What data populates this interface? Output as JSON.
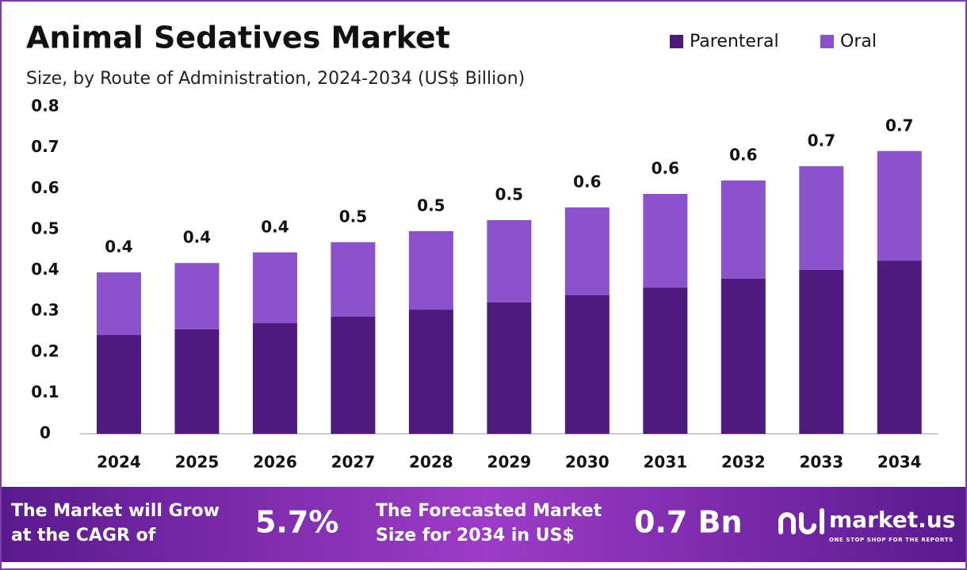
{
  "chart_data": {
    "type": "stacked_bar",
    "title": "Animal Sedatives Market",
    "subtitle": "Size, by Route of Administration, 2024-2034 (US$ Billion)",
    "categories": [
      "2024",
      "2025",
      "2026",
      "2027",
      "2028",
      "2029",
      "2030",
      "2031",
      "2032",
      "2033",
      "2034"
    ],
    "series": [
      {
        "name": "Parenteral",
        "color": "#4e1a7e",
        "values": [
          0.242,
          0.256,
          0.271,
          0.287,
          0.304,
          0.322,
          0.339,
          0.358,
          0.38,
          0.401,
          0.424
        ]
      },
      {
        "name": "Oral",
        "color": "#8b52cc",
        "values": [
          0.153,
          0.162,
          0.173,
          0.182,
          0.192,
          0.201,
          0.215,
          0.229,
          0.24,
          0.254,
          0.268
        ]
      }
    ],
    "total_labels": [
      "0.4",
      "0.4",
      "0.4",
      "0.5",
      "0.5",
      "0.5",
      "0.6",
      "0.6",
      "0.6",
      "0.7",
      "0.7"
    ],
    "ylim": [
      0,
      0.8
    ],
    "yticks": [
      0,
      0.1,
      0.2,
      0.3,
      0.4,
      0.5,
      0.6,
      0.7,
      0.8
    ],
    "grid": false,
    "legend": "top-right"
  },
  "footer": {
    "cagr_text": [
      "The Market will Grow",
      "at the CAGR of"
    ],
    "cagr_value": "5.7%",
    "forecast_text": [
      "The Forecasted Market",
      "Size for 2034 in US$"
    ],
    "forecast_value": "0.7 Bn",
    "brand": "market.us",
    "tagline": "ONE STOP SHOP FOR THE REPORTS"
  }
}
